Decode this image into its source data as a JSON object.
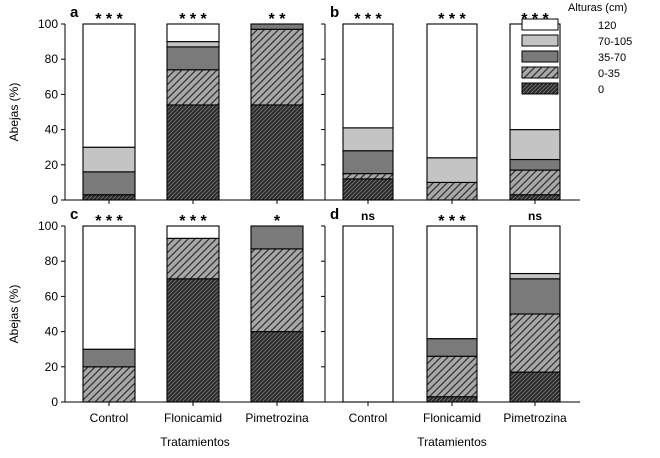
{
  "colors": {
    "c0": "#2a2a2a",
    "c0_35": "#a8a8a8",
    "c35_70": "#7a7a7a",
    "c70_105": "#c4c4c4",
    "c120": "#ffffff"
  },
  "ylabel": "Abejas (%)",
  "xlabel": "Tratamientos",
  "legend": {
    "title": "Alturas (cm)",
    "items": [
      {
        "label": "120",
        "key": "c120",
        "pattern": "none"
      },
      {
        "label": "70-105",
        "key": "c70_105",
        "pattern": "none"
      },
      {
        "label": "35-70",
        "key": "c35_70",
        "pattern": "none"
      },
      {
        "label": "0-35",
        "key": "c0_35",
        "pattern": "hatch"
      },
      {
        "label": "0",
        "key": "c0",
        "pattern": "hatch-dense"
      }
    ]
  },
  "chart_data": [
    {
      "type": "bar",
      "panel": "a",
      "stacked": true,
      "categories": [
        "Control",
        "Flonicamid",
        "Pimetrozina"
      ],
      "ylim": [
        0,
        100
      ],
      "yticks": [
        0,
        20,
        40,
        60,
        80,
        100
      ],
      "significance": [
        "* * *",
        "* * *",
        "* *"
      ],
      "series": [
        {
          "name": "0",
          "values": [
            3,
            54,
            54
          ]
        },
        {
          "name": "0-35",
          "values": [
            0,
            20,
            43
          ]
        },
        {
          "name": "35-70",
          "values": [
            13,
            13,
            3
          ]
        },
        {
          "name": "70-105",
          "values": [
            14,
            3,
            0
          ]
        },
        {
          "name": "120",
          "values": [
            70,
            10,
            0
          ]
        }
      ]
    },
    {
      "type": "bar",
      "panel": "b",
      "stacked": true,
      "categories": [
        "Control",
        "Flonicamid",
        "Pimetrozina"
      ],
      "ylim": [
        0,
        100
      ],
      "yticks": [
        0,
        20,
        40,
        60,
        80,
        100
      ],
      "significance": [
        "* * *",
        "* * *",
        "* * *"
      ],
      "series": [
        {
          "name": "0",
          "values": [
            12,
            0,
            3
          ]
        },
        {
          "name": "0-35",
          "values": [
            3,
            10,
            14
          ]
        },
        {
          "name": "35-70",
          "values": [
            13,
            0,
            6
          ]
        },
        {
          "name": "70-105",
          "values": [
            13,
            14,
            17
          ]
        },
        {
          "name": "120",
          "values": [
            59,
            76,
            60
          ]
        }
      ]
    },
    {
      "type": "bar",
      "panel": "c",
      "stacked": true,
      "categories": [
        "Control",
        "Flonicamid",
        "Pimetrozina"
      ],
      "ylim": [
        0,
        100
      ],
      "yticks": [
        0,
        20,
        40,
        60,
        80,
        100
      ],
      "significance": [
        "* * *",
        "* * *",
        "*"
      ],
      "series": [
        {
          "name": "0",
          "values": [
            0,
            70,
            40
          ]
        },
        {
          "name": "0-35",
          "values": [
            20,
            23,
            47
          ]
        },
        {
          "name": "35-70",
          "values": [
            10,
            0,
            13
          ]
        },
        {
          "name": "70-105",
          "values": [
            0,
            0,
            0
          ]
        },
        {
          "name": "120",
          "values": [
            70,
            7,
            0
          ]
        }
      ]
    },
    {
      "type": "bar",
      "panel": "d",
      "stacked": true,
      "categories": [
        "Control",
        "Flonicamid",
        "Pimetrozina"
      ],
      "ylim": [
        0,
        100
      ],
      "yticks": [
        0,
        20,
        40,
        60,
        80,
        100
      ],
      "significance": [
        "ns",
        "* * *",
        "ns"
      ],
      "series": [
        {
          "name": "0",
          "values": [
            0,
            3,
            17
          ]
        },
        {
          "name": "0-35",
          "values": [
            0,
            23,
            33
          ]
        },
        {
          "name": "35-70",
          "values": [
            0,
            10,
            20
          ]
        },
        {
          "name": "70-105",
          "values": [
            0,
            0,
            3
          ]
        },
        {
          "name": "120",
          "values": [
            100,
            64,
            27
          ]
        }
      ]
    }
  ]
}
